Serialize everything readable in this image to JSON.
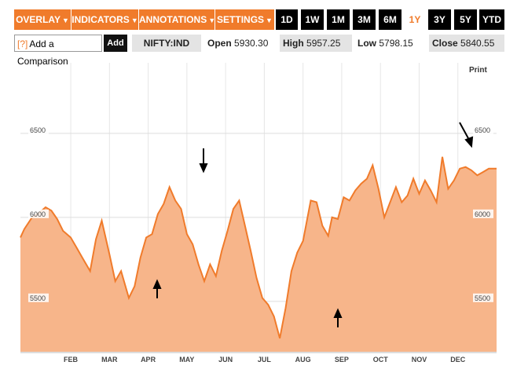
{
  "toolbar": {
    "overlay": "OVERLAY",
    "indicators": "INDICATORS",
    "annotations": "ANNOTATIONS",
    "settings": "SETTINGS",
    "ranges": [
      "1D",
      "1W",
      "1M",
      "3M",
      "6M",
      "1Y",
      "3Y",
      "5Y",
      "YTD"
    ],
    "active_range": "1Y",
    "accent": "#f07b2b"
  },
  "comparison": {
    "help": "[?]",
    "label": "Add a Comparison",
    "add": "Add"
  },
  "quote": {
    "symbol": "NIFTY:IND",
    "open_label": "Open",
    "open": "5930.30",
    "high_label": "High",
    "high": "5957.25",
    "low_label": "Low",
    "low": "5798.15",
    "close_label": "Close",
    "close": "5840.55"
  },
  "print": "Print",
  "chart_data": {
    "type": "area",
    "x_labels": [
      "FEB",
      "MAR",
      "APR",
      "MAY",
      "JUN",
      "JUL",
      "AUG",
      "SEP",
      "OCT",
      "NOV",
      "DEC"
    ],
    "y_ticks": [
      5500,
      6000,
      6500
    ],
    "ylim": [
      5200,
      6920
    ],
    "xlim": [
      0,
      12.3
    ],
    "fill_color": "#f7b58a",
    "line_color": "#f07b2b",
    "x": [
      0,
      0.1,
      0.3,
      0.5,
      0.65,
      0.8,
      0.95,
      1.1,
      1.3,
      1.45,
      1.6,
      1.8,
      1.95,
      2.1,
      2.3,
      2.45,
      2.6,
      2.8,
      2.95,
      3.1,
      3.25,
      3.4,
      3.55,
      3.7,
      3.85,
      4.0,
      4.15,
      4.3,
      4.45,
      4.6,
      4.75,
      4.9,
      5.05,
      5.2,
      5.35,
      5.5,
      5.65,
      5.8,
      5.95,
      6.1,
      6.25,
      6.4,
      6.55,
      6.7,
      6.85,
      7.0,
      7.15,
      7.3,
      7.5,
      7.65,
      7.8,
      7.95,
      8.05,
      8.2,
      8.35,
      8.5,
      8.65,
      8.8,
      8.95,
      9.1,
      9.25,
      9.4,
      9.55,
      9.7,
      9.85,
      10.0,
      10.15,
      10.3,
      10.45,
      10.6,
      10.75,
      10.9,
      11.05,
      11.2,
      11.35,
      11.5,
      11.65,
      11.8,
      11.95,
      12.1,
      12.3
    ],
    "values": [
      5880,
      5930,
      6000,
      6030,
      6060,
      6040,
      5990,
      5920,
      5880,
      5820,
      5760,
      5680,
      5870,
      5980,
      5780,
      5620,
      5680,
      5520,
      5590,
      5760,
      5880,
      5900,
      6020,
      6080,
      6180,
      6100,
      6050,
      5900,
      5840,
      5720,
      5620,
      5720,
      5650,
      5800,
      5920,
      6050,
      6100,
      5950,
      5800,
      5640,
      5520,
      5480,
      5410,
      5280,
      5460,
      5680,
      5790,
      5860,
      6100,
      6090,
      5950,
      5890,
      6000,
      5990,
      6120,
      6100,
      6160,
      6200,
      6230,
      6310,
      6170,
      6000,
      6090,
      6180,
      6090,
      6130,
      6230,
      6140,
      6220,
      6160,
      6090,
      6360,
      6170,
      6220,
      6290,
      6300,
      6280,
      6250,
      6270,
      6290,
      6290
    ]
  }
}
